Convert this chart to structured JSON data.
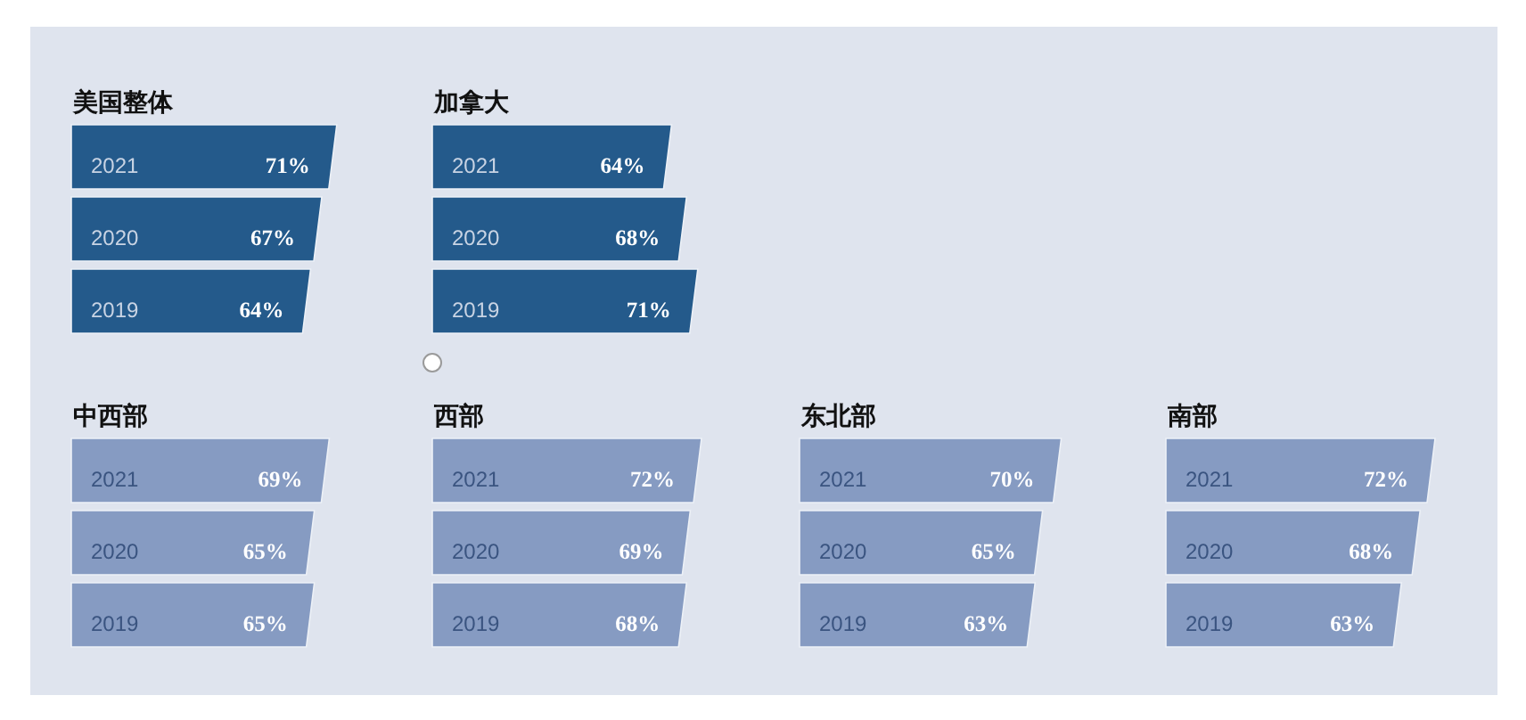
{
  "chart_data": [
    {
      "type": "bar",
      "orientation": "horizontal",
      "title": "美国整体",
      "categories": [
        "2021",
        "2020",
        "2019"
      ],
      "values": [
        71,
        67,
        64
      ],
      "value_labels": [
        "71%",
        "67%",
        "64%"
      ],
      "color": "#245a8b",
      "tick_labels": "y"
    },
    {
      "type": "bar",
      "orientation": "horizontal",
      "title": "加拿大",
      "categories": [
        "2021",
        "2020",
        "2019"
      ],
      "values": [
        64,
        68,
        71
      ],
      "value_labels": [
        "64%",
        "68%",
        "71%"
      ],
      "color": "#245a8b",
      "tick_labels": "y"
    },
    {
      "type": "bar",
      "orientation": "horizontal",
      "title": "中西部",
      "categories": [
        "2021",
        "2020",
        "2019"
      ],
      "values": [
        69,
        65,
        65
      ],
      "value_labels": [
        "69%",
        "65%",
        "65%"
      ],
      "color": "#869bc2",
      "tick_labels": "y"
    },
    {
      "type": "bar",
      "orientation": "horizontal",
      "title": "西部",
      "categories": [
        "2021",
        "2020",
        "2019"
      ],
      "values": [
        72,
        69,
        68
      ],
      "value_labels": [
        "72%",
        "69%",
        "68%"
      ],
      "color": "#869bc2",
      "tick_labels": "y"
    },
    {
      "type": "bar",
      "orientation": "horizontal",
      "title": "东北部",
      "categories": [
        "2021",
        "2020",
        "2019"
      ],
      "values": [
        70,
        65,
        63
      ],
      "value_labels": [
        "70%",
        "65%",
        "63%"
      ],
      "color": "#869bc2",
      "tick_labels": "y"
    },
    {
      "type": "bar",
      "orientation": "horizontal",
      "title": "南部",
      "categories": [
        "2021",
        "2020",
        "2019"
      ],
      "values": [
        72,
        68,
        63
      ],
      "value_labels": [
        "72%",
        "68%",
        "63%"
      ],
      "color": "#869bc2",
      "tick_labels": "y"
    }
  ]
}
